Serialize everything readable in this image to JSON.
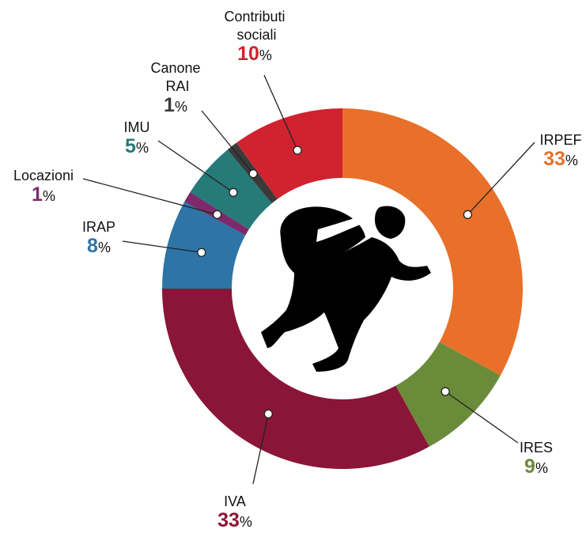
{
  "chart_data": {
    "type": "donut",
    "categories": [
      "IRPEF",
      "IRES",
      "IVA",
      "IRAP",
      "Locazioni",
      "IMU",
      "Canone RAI",
      "Contributi sociali"
    ],
    "values": [
      33,
      9,
      33,
      8,
      1,
      5,
      1,
      10
    ],
    "value_labels": [
      "33%",
      "9%",
      "33%",
      "8%",
      "1%",
      "5%",
      "1%",
      "10%"
    ],
    "colors": [
      "#e8702a",
      "#6a8c3a",
      "#8a1538",
      "#2e74a6",
      "#7d2a6b",
      "#267a78",
      "#3a3a3a",
      "#d0232f"
    ]
  }
}
